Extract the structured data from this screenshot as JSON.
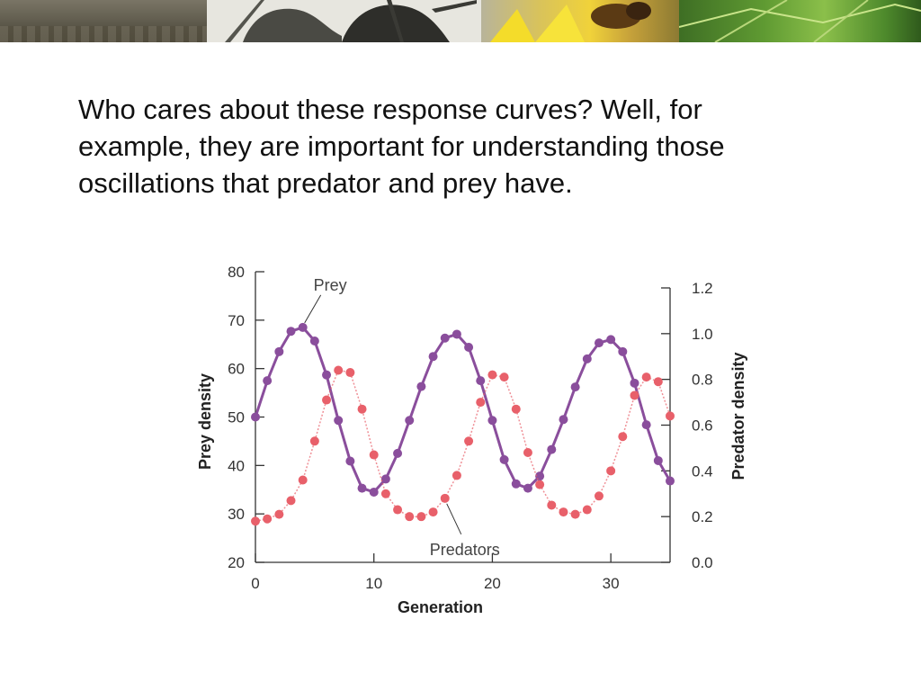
{
  "slide": {
    "body_text": "Who cares about these response curves?  Well, for example, they are important for understanding those oscillations that predator and prey have."
  },
  "banner": {
    "images": [
      "crocodile-photo",
      "ant-photo",
      "bee-flower-photo",
      "leaves-photo"
    ]
  },
  "colors": {
    "prey": "#8a4e9c",
    "predators": "#e8606a",
    "axis": "#333333"
  },
  "chart_data": {
    "type": "line",
    "title": "",
    "xlabel": "Generation",
    "ylabel": "Prey density",
    "y2label": "Predator density",
    "xlim": [
      0,
      35
    ],
    "ylim": [
      20,
      80
    ],
    "y2lim": [
      0.0,
      1.2
    ],
    "xticks": [
      "0",
      "10",
      "20",
      "30"
    ],
    "yticks": [
      "20",
      "30",
      "40",
      "50",
      "60",
      "70",
      "80"
    ],
    "y2ticks": [
      "0.0",
      "0.2",
      "0.4",
      "0.6",
      "0.8",
      "1.0",
      "1.2"
    ],
    "annotations": [
      {
        "text": "Prey",
        "series": "Prey",
        "x": 4
      },
      {
        "text": "Predators",
        "series": "Predators",
        "x": 16
      }
    ],
    "series": [
      {
        "name": "Prey",
        "axis": "left",
        "x": [
          0,
          1,
          2,
          3,
          4,
          5,
          6,
          7,
          8,
          9,
          10,
          11,
          12,
          13,
          14,
          15,
          16,
          17,
          18,
          19,
          20,
          21,
          22,
          23,
          24,
          25,
          26,
          27,
          28,
          29,
          30,
          31,
          32,
          33,
          34,
          35
        ],
        "values": [
          50,
          57.5,
          63.5,
          67.7,
          68.5,
          65.7,
          58.7,
          49.3,
          40.9,
          35.3,
          34.5,
          37.2,
          42.5,
          49.3,
          56.3,
          62.5,
          66.3,
          67.1,
          64.4,
          57.5,
          49.3,
          41.2,
          36.2,
          35.3,
          37.8,
          43.3,
          49.5,
          56.2,
          62,
          65.3,
          66,
          63.5,
          57,
          48.4,
          41,
          36.8
        ]
      },
      {
        "name": "Predators",
        "axis": "right",
        "x": [
          0,
          1,
          2,
          3,
          4,
          5,
          6,
          7,
          8,
          9,
          10,
          11,
          12,
          13,
          14,
          15,
          16,
          17,
          18,
          19,
          20,
          21,
          22,
          23,
          24,
          25,
          26,
          27,
          28,
          29,
          30,
          31,
          32,
          33,
          34,
          35
        ],
        "values": [
          0.18,
          0.19,
          0.21,
          0.27,
          0.36,
          0.53,
          0.71,
          0.84,
          0.83,
          0.67,
          0.47,
          0.3,
          0.23,
          0.2,
          0.2,
          0.22,
          0.28,
          0.38,
          0.53,
          0.7,
          0.82,
          0.81,
          0.67,
          0.48,
          0.34,
          0.25,
          0.22,
          0.21,
          0.23,
          0.29,
          0.4,
          0.55,
          0.73,
          0.81,
          0.79,
          0.64
        ]
      }
    ]
  }
}
